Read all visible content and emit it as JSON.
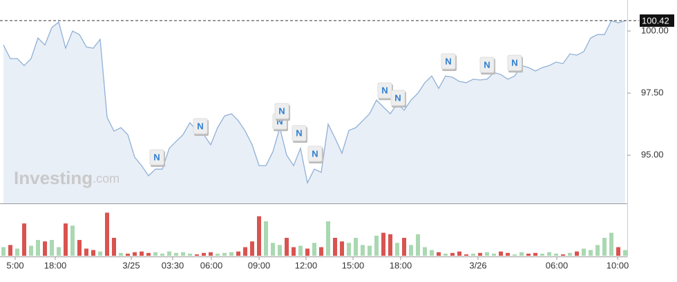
{
  "chart_data": [
    {
      "type": "area",
      "color": "#8fb0d6",
      "fill": "#e9eff7",
      "watermark": "Investing",
      "watermark_suffix": ".com",
      "values": [
        99.44,
        98.89,
        98.89,
        98.61,
        98.89,
        99.72,
        99.44,
        100.14,
        100.36,
        99.31,
        100.0,
        99.86,
        99.36,
        99.31,
        99.67,
        96.53,
        95.97,
        96.11,
        95.83,
        94.92,
        94.58,
        94.17,
        94.44,
        94.44,
        95.28,
        95.56,
        95.83,
        96.31,
        95.97,
        95.83,
        95.42,
        96.11,
        96.58,
        96.67,
        96.39,
        95.97,
        95.42,
        94.58,
        94.58,
        95.14,
        96.11,
        95.0,
        94.58,
        95.28,
        93.89,
        94.44,
        94.31,
        96.25,
        95.69,
        95.08,
        96.0,
        96.11,
        96.39,
        96.67,
        97.22,
        96.94,
        96.67,
        97.08,
        96.81,
        97.22,
        97.5,
        97.92,
        98.19,
        97.69,
        98.19,
        98.14,
        97.97,
        97.92,
        98.06,
        98.03,
        98.06,
        98.33,
        98.25,
        98.06,
        98.19,
        98.61,
        98.53,
        98.39,
        98.53,
        98.61,
        98.75,
        98.69,
        99.08,
        99.03,
        99.17,
        99.72,
        99.86,
        99.86,
        100.42,
        100.33,
        100.42
      ],
      "xlim": [
        0,
        90
      ],
      "ylim": [
        93.06,
        101.25
      ],
      "yticks": [
        {
          "value": 95,
          "label": "95.00"
        },
        {
          "value": 97.5,
          "label": "97.50"
        },
        {
          "value": 100,
          "label": "100.00"
        }
      ],
      "last_price": {
        "value": 100.42,
        "label": "100.42"
      },
      "xticks": [
        {
          "value": 1.7,
          "label": "5:00"
        },
        {
          "value": 7.5,
          "label": "18:00"
        },
        {
          "value": 18.5,
          "label": "3/25"
        },
        {
          "value": 24.5,
          "label": "03:30"
        },
        {
          "value": 30.1,
          "label": "06:00"
        },
        {
          "value": 37,
          "label": "09:00"
        },
        {
          "value": 43.8,
          "label": "12:00"
        },
        {
          "value": 50.6,
          "label": "15:00"
        },
        {
          "value": 57.5,
          "label": "18:00"
        },
        {
          "value": 68.7,
          "label": "3/26"
        },
        {
          "value": 80.1,
          "label": "06:00"
        },
        {
          "value": 88.9,
          "label": "10:00"
        }
      ],
      "news": [
        {
          "x": 22.2,
          "y": 94.89,
          "label": "N"
        },
        {
          "x": 28.5,
          "y": 96.14,
          "label": "N"
        },
        {
          "x": 40.0,
          "y": 96.33,
          "label": "N"
        },
        {
          "x": 40.3,
          "y": 96.75,
          "label": "N"
        },
        {
          "x": 42.8,
          "y": 95.86,
          "label": "N"
        },
        {
          "x": 45.1,
          "y": 95.03,
          "label": "N"
        },
        {
          "x": 55.2,
          "y": 97.58,
          "label": "N"
        },
        {
          "x": 57.1,
          "y": 97.28,
          "label": "N"
        },
        {
          "x": 64.4,
          "y": 98.75,
          "label": "N"
        },
        {
          "x": 70,
          "y": 98.61,
          "label": "N"
        },
        {
          "x": 74,
          "y": 98.69,
          "label": "N"
        }
      ]
    },
    {
      "type": "bar",
      "up_color": "#a9d8b1",
      "down_color": "#d9534f",
      "ylim": [
        0,
        70
      ],
      "values": [
        12,
        15,
        10,
        45,
        14,
        22,
        20,
        22,
        12,
        45,
        42,
        22,
        10,
        8,
        6,
        60,
        25,
        4,
        3,
        5,
        6,
        4,
        5,
        3,
        6,
        4,
        5,
        3,
        2,
        4,
        5,
        3,
        4,
        5,
        6,
        12,
        20,
        55,
        48,
        18,
        15,
        25,
        12,
        14,
        10,
        18,
        12,
        48,
        25,
        20,
        18,
        25,
        15,
        14,
        28,
        32,
        30,
        18,
        25,
        15,
        30,
        12,
        8,
        5,
        3,
        4,
        6,
        2,
        3,
        4,
        5,
        3,
        6,
        4,
        2,
        5,
        3,
        4,
        3,
        5,
        3,
        2,
        4,
        6,
        10,
        8,
        15,
        25,
        32,
        12,
        8
      ]
    }
  ]
}
